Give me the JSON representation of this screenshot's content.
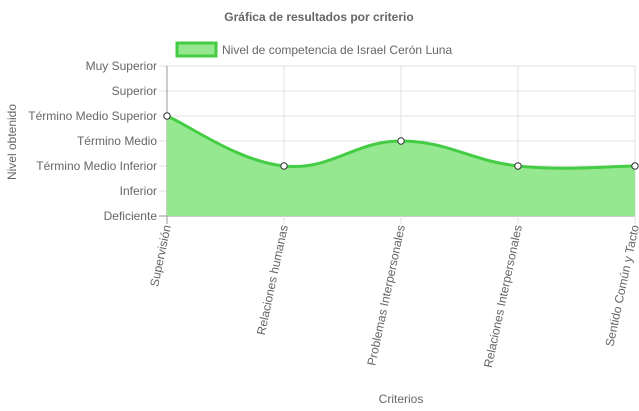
{
  "chart_data": {
    "type": "area",
    "title": "Gráfica de resultados por criterio",
    "xlabel": "Criterios",
    "ylabel": "Nivel obtenido",
    "categories": [
      "Supervisión",
      "Relaciones humanas",
      "Problemas Interpersonales",
      "Relaciones Interpersonales",
      "Sentido Común y Tacto"
    ],
    "y_levels": [
      "Deficiente",
      "Inferior",
      "Término Medio Inferior",
      "Término Medio",
      "Término Medio Superior",
      "Superior",
      "Muy Superior"
    ],
    "ylim": [
      0,
      6
    ],
    "series": [
      {
        "name": "Nivel de competencia de Israel Cerón Luna",
        "values": [
          4,
          2,
          3,
          2,
          2
        ]
      }
    ],
    "legend_position": "top",
    "grid": true,
    "colors": {
      "line": "#44cc44",
      "fill": "#96e890",
      "grid": "#e0e0e0",
      "axis": "#999999"
    }
  }
}
